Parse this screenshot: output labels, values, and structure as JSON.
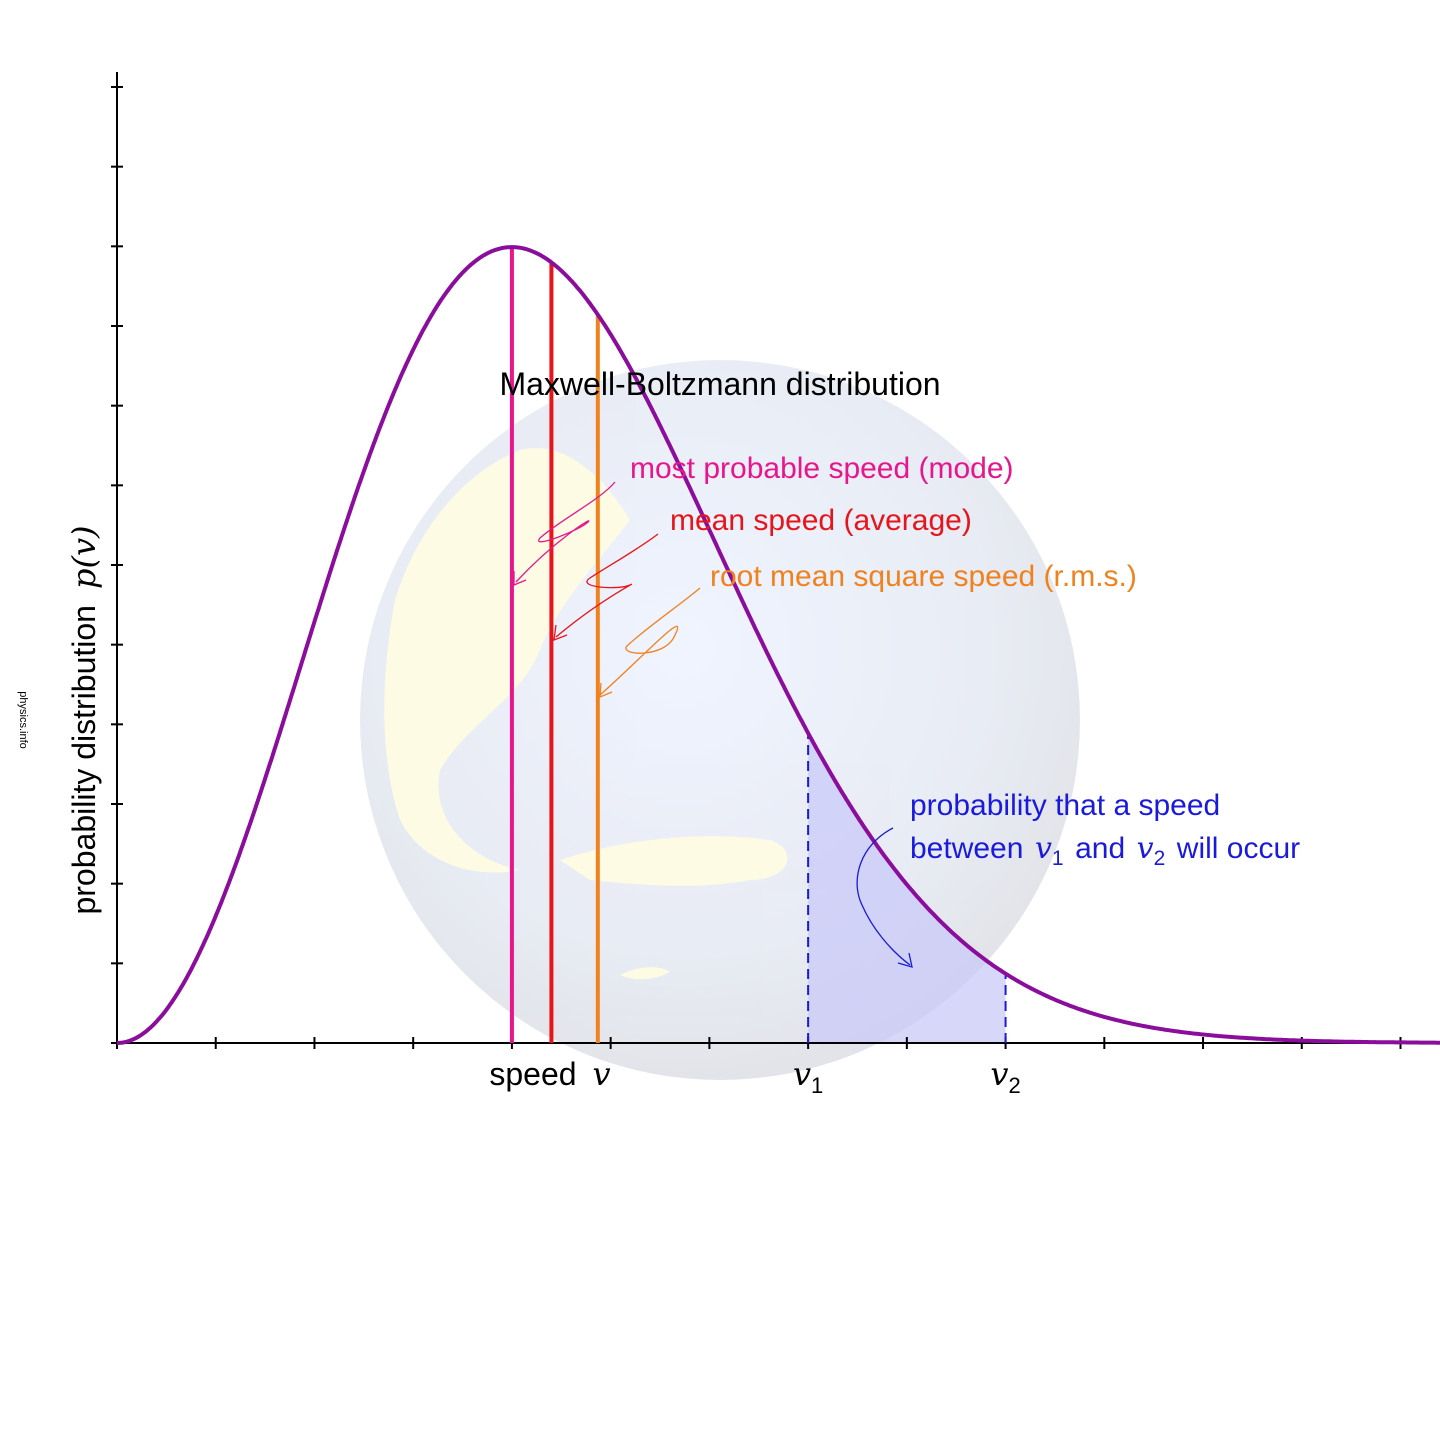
{
  "chart_data": {
    "type": "line",
    "title": "Maxwell-Boltzmann distribution",
    "xlabel": {
      "text": "speed",
      "symbol": "v"
    },
    "ylabel": {
      "text": "probability distribution",
      "symbol": "p(v)"
    },
    "xlim": [
      0,
      13.4
    ],
    "ylim": [
      0,
      1.22
    ],
    "x_tick_count": 14,
    "y_tick_count": 13,
    "x_tick_labels": [
      {
        "x": 7.0,
        "symbol": "v",
        "sub": "1"
      },
      {
        "x": 9.0,
        "symbol": "v",
        "sub": "2"
      }
    ],
    "series": [
      {
        "curve": "maxwell-boltzmann",
        "mode": 4.0,
        "peak": 1.0,
        "sample_x": [
          0,
          0.5,
          1,
          1.5,
          2,
          2.5,
          3,
          3.5,
          4,
          4.5,
          5,
          5.5,
          6,
          6.5,
          7,
          7.5,
          8,
          8.5,
          9,
          9.5,
          10,
          11,
          12,
          13.4
        ],
        "sample_y": [
          0,
          0.04,
          0.147,
          0.323,
          0.519,
          0.727,
          0.884,
          0.974,
          1.0,
          0.966,
          0.88,
          0.76,
          0.623,
          0.487,
          0.364,
          0.259,
          0.177,
          0.116,
          0.073,
          0.045,
          0.027,
          0.008,
          0.002,
          0.0
        ],
        "color": "#8b0d9c"
      }
    ],
    "markers": [
      {
        "name": "mode",
        "x": 4.0,
        "color": "#e8158c"
      },
      {
        "name": "mean",
        "x": 4.4,
        "color": "#e8141b"
      },
      {
        "name": "rms",
        "x": 4.87,
        "color": "#f0821e"
      }
    ],
    "shaded_interval": {
      "from": 7.0,
      "to": 9.0,
      "color": "#c9caf8"
    },
    "annotations": [
      {
        "id": "mode",
        "text": "most probable speed (mode)",
        "color": "#e8158c"
      },
      {
        "id": "mean",
        "text": "mean speed (average)",
        "color": "#e8141b"
      },
      {
        "id": "rms",
        "text": "root mean square speed (r.m.s.)",
        "color": "#f0821e"
      },
      {
        "id": "interval",
        "line1": "probability that a speed",
        "line2_prefix": "between",
        "v1": "v",
        "v1_sub": "1",
        "and": "and",
        "v2": "v",
        "v2_sub": "2",
        "suffix": "will occur",
        "color": "#1a1adc"
      }
    ],
    "grid": false,
    "legend": "none"
  },
  "watermark": "physics.info"
}
